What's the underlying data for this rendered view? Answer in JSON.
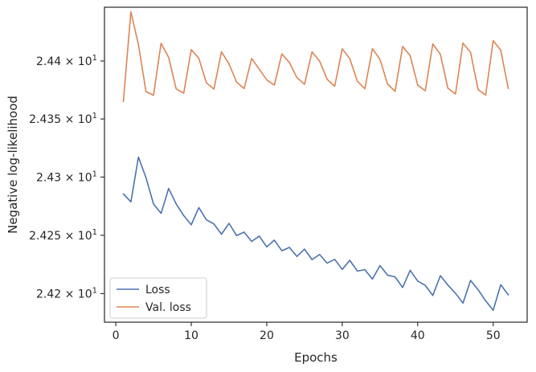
{
  "chart_data": {
    "type": "line",
    "title": "",
    "xlabel": "Epochs",
    "ylabel": "Negative log-likelihood",
    "xlim": [
      -1.5,
      54.5
    ],
    "ylim": [
      24.1755,
      24.4465
    ],
    "y_scale": "log",
    "grid": false,
    "legend_position": "lower-left",
    "x_ticks": [
      0,
      10,
      20,
      30,
      40,
      50
    ],
    "x_tick_labels": [
      "0",
      "10",
      "20",
      "30",
      "40",
      "50"
    ],
    "y_ticks": [
      24.2,
      24.25,
      24.3,
      24.35,
      24.4
    ],
    "y_tick_labels": [
      "2.42 × 10¹",
      "2.425 × 10¹",
      "2.43 × 10¹",
      "2.435 × 10¹",
      "2.44 × 10¹"
    ],
    "x": [
      1,
      2,
      3,
      4,
      5,
      6,
      7,
      8,
      9,
      10,
      11,
      12,
      13,
      14,
      15,
      16,
      17,
      18,
      19,
      20,
      21,
      22,
      23,
      24,
      25,
      26,
      27,
      28,
      29,
      30,
      31,
      32,
      33,
      34,
      35,
      36,
      37,
      38,
      39,
      40,
      41,
      42,
      43,
      44,
      45,
      46,
      47,
      48,
      49,
      50,
      51,
      52
    ],
    "series": [
      {
        "name": "Loss",
        "color": "#4c72b0",
        "values": [
          24.2855,
          24.2787,
          24.3172,
          24.2995,
          24.2768,
          24.2688,
          24.2902,
          24.2769,
          24.2669,
          24.259,
          24.2738,
          24.2633,
          24.2597,
          24.2509,
          24.2602,
          24.2497,
          24.2527,
          24.2447,
          24.2493,
          24.24,
          24.2458,
          24.2367,
          24.2396,
          24.2318,
          24.2381,
          24.2291,
          24.2335,
          24.2261,
          24.2293,
          24.2207,
          24.2285,
          24.2193,
          24.2205,
          24.2124,
          24.224,
          24.2158,
          24.2143,
          24.2052,
          24.2199,
          24.2107,
          24.207,
          24.1984,
          24.2153,
          24.2072,
          24.2003,
          24.1918,
          24.2113,
          24.2033,
          24.1938,
          24.1857,
          24.2076,
          24.1989
        ]
      },
      {
        "name": "Val. loss",
        "color": "#dd8452",
        "values": [
          24.365,
          24.4425,
          24.4142,
          24.3736,
          24.3705,
          24.4153,
          24.4032,
          24.3759,
          24.3723,
          24.4098,
          24.4023,
          24.3812,
          24.3758,
          24.4079,
          24.3975,
          24.3818,
          24.3762,
          24.4022,
          24.393,
          24.3837,
          24.3792,
          24.4061,
          24.3987,
          24.3857,
          24.3799,
          24.4079,
          24.3999,
          24.3842,
          24.3782,
          24.4106,
          24.402,
          24.3827,
          24.3761,
          24.4107,
          24.4014,
          24.3802,
          24.3738,
          24.4125,
          24.4047,
          24.3792,
          24.3743,
          24.4148,
          24.4058,
          24.3765,
          24.3715,
          24.4155,
          24.4075,
          24.3754,
          24.3706,
          24.4176,
          24.4093,
          24.3762
        ]
      }
    ]
  }
}
